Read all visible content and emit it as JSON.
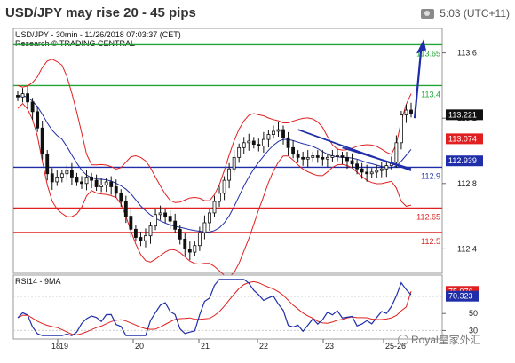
{
  "header": {
    "title": "USD/JPY may rise 20 - 45 pips",
    "time": "5:03 (UTC+11)",
    "time_icon": "camera-icon"
  },
  "watermark": {
    "text": "Royal皇家外汇",
    "icon": "wechat-icon"
  },
  "chart_data": [
    {
      "type": "candlestick",
      "title": "USD/JPY - 30min - 11/26/2018 07:03:37 (CET)",
      "subtitle": "Research © TRADING CENTRAL",
      "ylim": [
        112.25,
        113.75
      ],
      "y_ticks": [
        113.6,
        113.2,
        112.8,
        112.4
      ],
      "y_tick_labels": [
        "113.6",
        "113.2",
        "112.8",
        "112.4"
      ],
      "x_tick_labels": [
        "19",
        "20",
        "21",
        "22",
        "23",
        "25-26"
      ],
      "x_tick_labels_prefix": "18",
      "levels": [
        {
          "value": 113.65,
          "label": "113.65",
          "color": "#22a535",
          "label_color": "#22a535"
        },
        {
          "value": 113.4,
          "label": "113.4",
          "color": "#22a535",
          "label_color": "#22a535"
        },
        {
          "value": 112.9,
          "label": "112.9",
          "color": "#1f2ea8",
          "label_color": "#1f2ea8"
        },
        {
          "value": 112.65,
          "label": "112.65",
          "color": "#e02020",
          "label_color": "#e02020"
        },
        {
          "value": 112.5,
          "label": "112.5",
          "color": "#e02020",
          "label_color": "#e02020"
        }
      ],
      "price_badges": [
        {
          "value": 113.221,
          "label": "113.221",
          "bg": "#111111",
          "fg": "#ffffff"
        },
        {
          "value": 113.074,
          "label": "113.074",
          "bg": "#e02020",
          "fg": "#ffffff"
        },
        {
          "value": 112.939,
          "label": "112.939",
          "bg": "#1f2ea8",
          "fg": "#ffffff"
        }
      ],
      "forecast_arrow": {
        "from": 113.2,
        "to": 113.65
      },
      "series": [
        {
          "type": "candles",
          "close": [
            113.33,
            113.35,
            113.3,
            113.24,
            113.14,
            112.98,
            112.86,
            112.81,
            112.84,
            112.86,
            112.88,
            112.84,
            112.81,
            112.8,
            112.84,
            112.82,
            112.78,
            112.79,
            112.81,
            112.78,
            112.74,
            112.69,
            112.6,
            112.52,
            112.47,
            112.45,
            112.48,
            112.54,
            112.61,
            112.62,
            112.6,
            112.57,
            112.52,
            112.46,
            112.4,
            112.38,
            112.42,
            112.5,
            112.56,
            112.62,
            112.69,
            112.74,
            112.82,
            112.89,
            112.96,
            113.02,
            113.05,
            113.06,
            113.04,
            113.03,
            113.07,
            113.1,
            113.12,
            113.13,
            113.08,
            113.02,
            112.98,
            112.96,
            112.95,
            112.96,
            112.97,
            112.96,
            112.95,
            112.96,
            112.97,
            112.97,
            112.96,
            112.94,
            112.92,
            112.89,
            112.87,
            112.86,
            112.87,
            112.88,
            112.89,
            112.91,
            112.93,
            113.05,
            113.22,
            113.25,
            113.23
          ]
        },
        {
          "type": "bollinger_upper",
          "color": "#e02020"
        },
        {
          "type": "bollinger_lower",
          "color": "#e02020"
        },
        {
          "type": "moving_average",
          "color": "#1f2ea8"
        }
      ],
      "trendlines": [
        {
          "from_index": 57,
          "from_value": 113.13,
          "to_index": 85,
          "to_value": 112.88,
          "color": "#1f2ea8"
        },
        {
          "from_index": 66,
          "from_value": 113.02,
          "to_index": 84,
          "to_value": 112.89,
          "color": "#1f2ea8"
        }
      ]
    },
    {
      "type": "line",
      "title": "RSI14 - 9MA",
      "ylim": [
        20,
        95
      ],
      "y_ticks": [
        50,
        30
      ],
      "y_tick_labels": [
        "50",
        "30"
      ],
      "badges": [
        {
          "value": 75.976,
          "label": "75.976",
          "bg": "#e02020",
          "fg": "#ffffff"
        },
        {
          "value": 70.323,
          "label": "70.323",
          "bg": "#1f2ea8",
          "fg": "#ffffff"
        }
      ],
      "series": [
        {
          "name": "RSI14",
          "color": "#1f2ea8"
        },
        {
          "name": "9MA",
          "color": "#e02020"
        }
      ]
    }
  ]
}
